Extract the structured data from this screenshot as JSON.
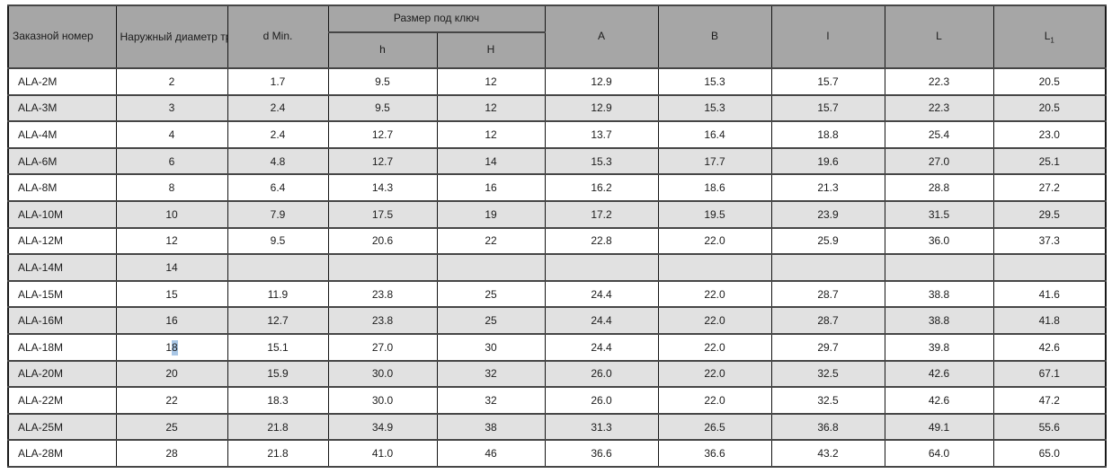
{
  "table": {
    "headers": {
      "order": "Заказной номер",
      "outer_diameter": "Наружный\nдиаметр\nтрубы D",
      "d_min": "d Min.",
      "wrench_size_group": "Размер под ключ",
      "h_small": "h",
      "h_big": "H",
      "a": "A",
      "b": "B",
      "l_small": "l",
      "l_big": "L",
      "l1_base": "L",
      "l1_sub": "1"
    },
    "rows": [
      [
        "ALA-2M",
        "2",
        "1.7",
        "9.5",
        "12",
        "12.9",
        "15.3",
        "15.7",
        "22.3",
        "20.5"
      ],
      [
        "ALA-3M",
        "3",
        "2.4",
        "9.5",
        "12",
        "12.9",
        "15.3",
        "15.7",
        "22.3",
        "20.5"
      ],
      [
        "ALA-4M",
        "4",
        "2.4",
        "12.7",
        "12",
        "13.7",
        "16.4",
        "18.8",
        "25.4",
        "23.0"
      ],
      [
        "ALA-6M",
        "6",
        "4.8",
        "12.7",
        "14",
        "15.3",
        "17.7",
        "19.6",
        "27.0",
        "25.1"
      ],
      [
        "ALA-8M",
        "8",
        "6.4",
        "14.3",
        "16",
        "16.2",
        "18.6",
        "21.3",
        "28.8",
        "27.2"
      ],
      [
        "ALA-10M",
        "10",
        "7.9",
        "17.5",
        "19",
        "17.2",
        "19.5",
        "23.9",
        "31.5",
        "29.5"
      ],
      [
        "ALA-12M",
        "12",
        "9.5",
        "20.6",
        "22",
        "22.8",
        "22.0",
        "25.9",
        "36.0",
        "37.3"
      ],
      [
        "ALA-14M",
        "14",
        "",
        "",
        "",
        "",
        "",
        "",
        "",
        ""
      ],
      [
        "ALA-15M",
        "15",
        "11.9",
        "23.8",
        "25",
        "24.4",
        "22.0",
        "28.7",
        "38.8",
        "41.6"
      ],
      [
        "ALA-16M",
        "16",
        "12.7",
        "23.8",
        "25",
        "24.4",
        "22.0",
        "28.7",
        "38.8",
        "41.8"
      ],
      [
        "ALA-18M",
        "18",
        "15.1",
        "27.0",
        "30",
        "24.4",
        "22.0",
        "29.7",
        "39.8",
        "42.6"
      ],
      [
        "ALA-20M",
        "20",
        "15.9",
        "30.0",
        "32",
        "26.0",
        "22.0",
        "32.5",
        "42.6",
        "67.1"
      ],
      [
        "ALA-22M",
        "22",
        "18.3",
        "30.0",
        "32",
        "26.0",
        "22.0",
        "32.5",
        "42.6",
        "47.2"
      ],
      [
        "ALA-25M",
        "25",
        "21.8",
        "34.9",
        "38",
        "31.3",
        "26.5",
        "36.8",
        "49.1",
        "55.6"
      ],
      [
        "ALA-28M",
        "28",
        "21.8",
        "41.0",
        "46",
        "36.6",
        "36.6",
        "43.2",
        "64.0",
        "65.0"
      ]
    ],
    "selection": {
      "row_index": 10,
      "cell_index": 1,
      "start_char": 1,
      "color": "#a9c7e6"
    },
    "colors": {
      "header_bg": "#a6a6a6",
      "row_bg": "#ffffff",
      "row_alt_bg": "#e1e1e1",
      "border": "#141414",
      "text": "#1c1c1c"
    }
  }
}
